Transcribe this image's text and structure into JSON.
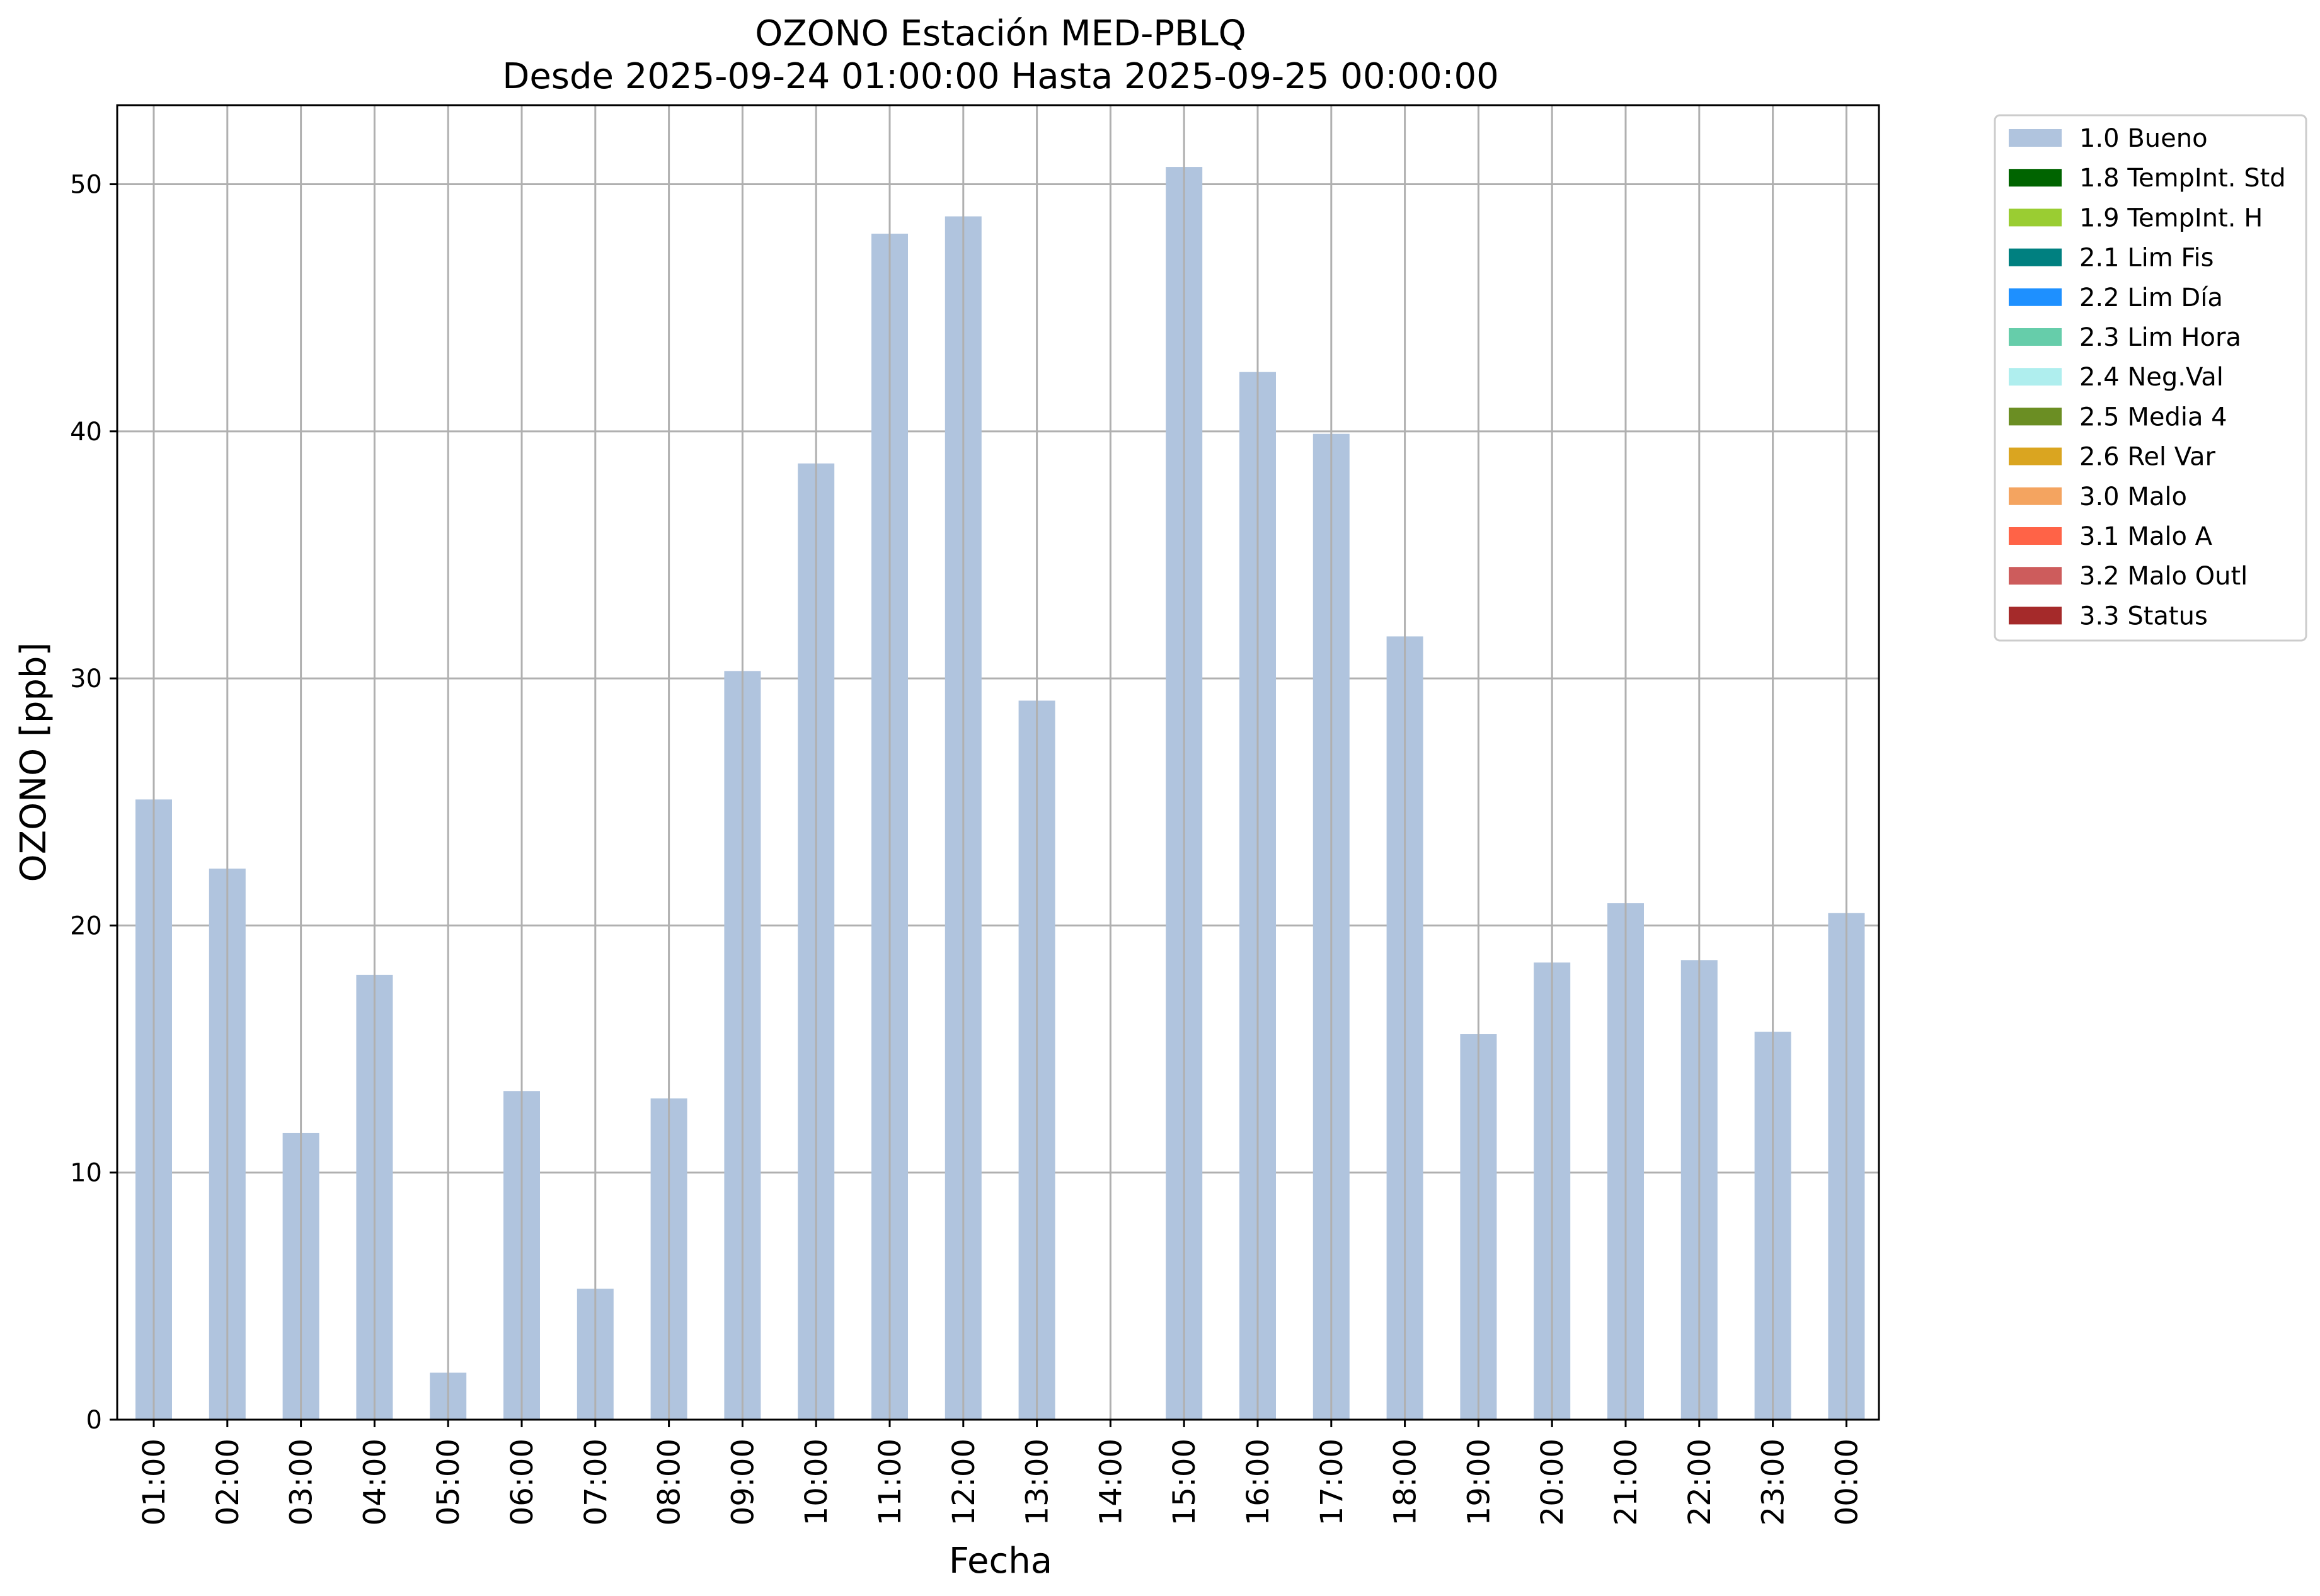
{
  "chart_data": {
    "type": "bar",
    "title": "OZONO Estación MED-PBLQ",
    "subtitle": "Desde 2025-09-24 01:00:00 Hasta 2025-09-25 00:00:00",
    "xlabel": "Fecha",
    "ylabel": "OZONO [ppb]",
    "ylim": [
      0,
      53.2
    ],
    "yticks": [
      "0",
      "10",
      "20",
      "30",
      "40",
      "50"
    ],
    "categories": [
      "01:00",
      "02:00",
      "03:00",
      "04:00",
      "05:00",
      "06:00",
      "07:00",
      "08:00",
      "09:00",
      "10:00",
      "11:00",
      "12:00",
      "13:00",
      "14:00",
      "15:00",
      "16:00",
      "17:00",
      "18:00",
      "19:00",
      "20:00",
      "21:00",
      "22:00",
      "23:00",
      "00:00"
    ],
    "series": [
      {
        "name": "1.0 Bueno",
        "color": "#b0c4de",
        "values": [
          25.1,
          22.3,
          11.6,
          18.0,
          1.9,
          13.3,
          5.3,
          13.0,
          30.3,
          38.7,
          48.0,
          48.7,
          29.1,
          null,
          50.7,
          42.4,
          39.9,
          31.7,
          15.6,
          18.5,
          20.9,
          18.6,
          15.7,
          20.5
        ]
      }
    ],
    "grid": true,
    "legend_position": "outside-right",
    "legend": [
      {
        "label": "1.0 Bueno",
        "color": "#b0c4de"
      },
      {
        "label": "1.8 TempInt. Std",
        "color": "#006400"
      },
      {
        "label": "1.9 TempInt. H",
        "color": "#9acd32"
      },
      {
        "label": "2.1 Lim Fis",
        "color": "#008080"
      },
      {
        "label": "2.2 Lim Día",
        "color": "#1e90ff"
      },
      {
        "label": "2.3 Lim Hora",
        "color": "#66cdaa"
      },
      {
        "label": "2.4 Neg.Val",
        "color": "#afeeee"
      },
      {
        "label": "2.5 Media 4",
        "color": "#6b8e23"
      },
      {
        "label": "2.6 Rel Var",
        "color": "#daa520"
      },
      {
        "label": "3.0 Malo",
        "color": "#f4a460"
      },
      {
        "label": "3.1 Malo A",
        "color": "#ff6347"
      },
      {
        "label": "3.2 Malo Outl",
        "color": "#cd5c5c"
      },
      {
        "label": "3.3 Status",
        "color": "#a52a2a"
      }
    ]
  }
}
